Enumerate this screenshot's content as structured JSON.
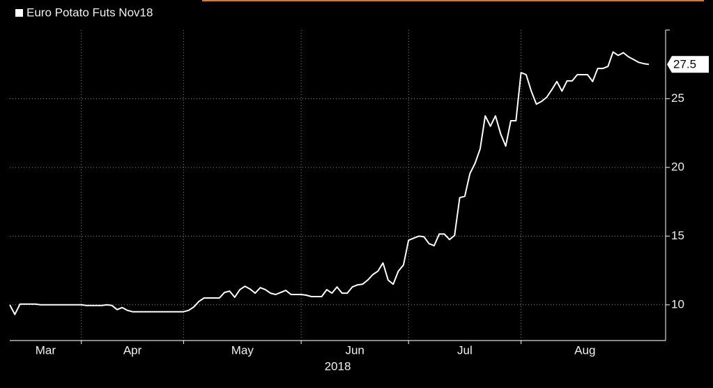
{
  "chart_data": {
    "type": "line",
    "year_label": "2018",
    "categories": [
      "Mar",
      null,
      null,
      null,
      null,
      null,
      null,
      null,
      null,
      null,
      null,
      null,
      null,
      null,
      "Apr",
      null,
      null,
      null,
      null,
      null,
      null,
      null,
      null,
      null,
      null,
      null,
      null,
      null,
      null,
      null,
      null,
      null,
      null,
      null,
      "May",
      null,
      null,
      null,
      null,
      null,
      null,
      null,
      null,
      null,
      null,
      null,
      null,
      null,
      null,
      null,
      null,
      null,
      null,
      null,
      null,
      null,
      null,
      "Jun",
      null,
      null,
      null,
      null,
      null,
      null,
      null,
      null,
      null,
      null,
      null,
      null,
      null,
      null,
      null,
      null,
      null,
      null,
      null,
      null,
      "Jul",
      null,
      null,
      null,
      null,
      null,
      null,
      null,
      null,
      null,
      null,
      null,
      null,
      null,
      null,
      null,
      null,
      null,
      null,
      null,
      null,
      null,
      "Aug",
      null,
      null,
      null,
      null,
      null,
      null,
      null,
      null,
      null,
      null,
      null,
      null,
      null,
      null,
      null,
      null,
      null,
      null,
      null,
      null,
      null,
      null,
      null,
      null,
      null
    ],
    "series": [
      {
        "name": "Euro Potato Futs Nov18",
        "color": "#ffffff",
        "values": [
          10.0,
          9.3,
          10.05,
          10.05,
          10.05,
          10.05,
          10.0,
          10.0,
          10.0,
          10.0,
          10.0,
          10.0,
          10.0,
          10.0,
          10.0,
          9.95,
          9.95,
          9.95,
          9.95,
          10.0,
          9.95,
          9.65,
          9.8,
          9.6,
          9.5,
          9.5,
          9.5,
          9.5,
          9.5,
          9.5,
          9.5,
          9.5,
          9.5,
          9.5,
          9.5,
          9.6,
          9.85,
          10.25,
          10.5,
          10.5,
          10.5,
          10.5,
          10.9,
          11.0,
          10.55,
          11.1,
          11.35,
          11.15,
          10.85,
          11.25,
          11.1,
          10.85,
          10.75,
          10.9,
          11.05,
          10.75,
          10.75,
          10.75,
          10.7,
          10.6,
          10.6,
          10.6,
          11.1,
          10.85,
          11.3,
          10.85,
          10.85,
          11.3,
          11.45,
          11.5,
          11.8,
          12.2,
          12.45,
          13.05,
          11.8,
          11.5,
          12.45,
          12.9,
          14.7,
          14.85,
          15.0,
          14.95,
          14.45,
          14.3,
          15.15,
          15.15,
          14.75,
          15.05,
          17.8,
          17.9,
          19.55,
          20.3,
          21.35,
          23.75,
          23.0,
          23.75,
          22.45,
          21.55,
          23.4,
          23.4,
          26.9,
          26.75,
          25.55,
          24.6,
          24.8,
          25.1,
          25.65,
          26.25,
          25.55,
          26.3,
          26.3,
          26.75,
          26.75,
          26.75,
          26.25,
          27.2,
          27.2,
          27.35,
          28.4,
          28.15,
          28.35,
          28.05,
          27.85,
          27.65,
          27.55,
          27.5
        ]
      }
    ],
    "last_value": 27.5,
    "ylim": [
      7.4,
      30
    ],
    "yticks": [
      10,
      15,
      20,
      25
    ],
    "grid": true
  }
}
